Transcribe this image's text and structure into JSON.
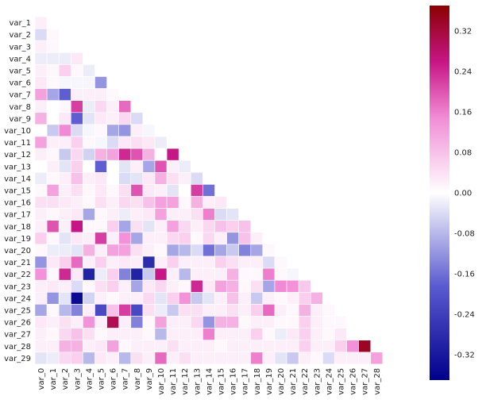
{
  "chart_data": {
    "type": "heatmap",
    "title": "",
    "xlabel": "",
    "ylabel": "",
    "mask": "lower-triangle-including-diagonal",
    "rows": [
      "var_1",
      "var_2",
      "var_3",
      "var_4",
      "var_5",
      "var_6",
      "var_7",
      "var_8",
      "var_9",
      "var_10",
      "var_11",
      "var_12",
      "var_13",
      "var_14",
      "var_15",
      "var_16",
      "var_17",
      "var_18",
      "var_19",
      "var_20",
      "var_21",
      "var_22",
      "var_23",
      "var_24",
      "var_25",
      "var_26",
      "var_27",
      "var_28",
      "var_29"
    ],
    "columns": [
      "var_0",
      "var_1",
      "var_2",
      "var_3",
      "var_4",
      "var_5",
      "var_6",
      "var_7",
      "var_8",
      "var_9",
      "var_10",
      "var_11",
      "var_12",
      "var_13",
      "var_14",
      "var_15",
      "var_16",
      "var_17",
      "var_18",
      "var_19",
      "var_20",
      "var_21",
      "var_22",
      "var_23",
      "var_24",
      "var_25",
      "var_26",
      "var_27",
      "var_28"
    ],
    "values": [
      [
        0.02
      ],
      [
        -0.04,
        0.01
      ],
      [
        0.02,
        0.01,
        0.0
      ],
      [
        -0.02,
        -0.02,
        -0.02,
        0.03
      ],
      [
        0.02,
        0.01,
        0.06,
        0.01,
        -0.02
      ],
      [
        0.03,
        0.01,
        -0.01,
        -0.01,
        -0.01,
        -0.12
      ],
      [
        0.12,
        -0.1,
        -0.18,
        0.02,
        0.02,
        0.02,
        0.01
      ],
      [
        0.02,
        0.0,
        0.01,
        0.22,
        -0.02,
        0.05,
        0.02,
        0.18
      ],
      [
        0.1,
        0.0,
        0.03,
        -0.18,
        -0.03,
        0.03,
        0.02,
        0.05,
        -0.04
      ],
      [
        0.0,
        -0.06,
        0.15,
        -0.04,
        -0.01,
        0.01,
        -0.1,
        -0.12,
        0.02,
        -0.01
      ],
      [
        0.12,
        0.02,
        0.02,
        0.06,
        0.01,
        -0.01,
        -0.04,
        0.03,
        0.04,
        0.03,
        -0.02
      ],
      [
        0.02,
        0.01,
        -0.06,
        0.05,
        -0.05,
        0.1,
        0.12,
        0.24,
        0.2,
        0.1,
        0.0,
        0.26
      ],
      [
        0.0,
        0.02,
        -0.03,
        0.06,
        0.0,
        -0.18,
        0.0,
        -0.03,
        0.02,
        -0.1,
        0.2,
        0.02,
        -0.02
      ],
      [
        -0.02,
        0.01,
        0.02,
        0.08,
        0.02,
        0.03,
        0.0,
        -0.04,
        -0.03,
        0.03,
        0.1,
        0.04,
        0.02,
        -0.04
      ],
      [
        0.01,
        0.12,
        0.02,
        0.04,
        0.01,
        0.03,
        0.01,
        0.04,
        0.2,
        0.03,
        0.02,
        -0.03,
        0.0,
        0.22,
        -0.16
      ],
      [
        0.04,
        0.04,
        0.03,
        0.02,
        0.01,
        0.04,
        0.02,
        0.05,
        0.04,
        0.08,
        0.12,
        0.12,
        0.01,
        0.1,
        0.02,
        0.03
      ],
      [
        0.02,
        0.01,
        0.02,
        0.03,
        -0.1,
        0.01,
        0.02,
        -0.02,
        0.02,
        0.03,
        0.12,
        0.02,
        0.02,
        0.04,
        0.16,
        -0.04,
        -0.03
      ],
      [
        0.02,
        0.2,
        0.02,
        0.26,
        0.01,
        0.01,
        0.06,
        -0.1,
        0.04,
        -0.03,
        0.02,
        0.12,
        0.05,
        0.02,
        0.05,
        0.08,
        0.06,
        0.08
      ],
      [
        0.06,
        0.01,
        -0.03,
        0.03,
        0.02,
        0.22,
        0.02,
        0.14,
        -0.1,
        0.02,
        0.02,
        0.05,
        0.06,
        0.01,
        0.05,
        0.02,
        -0.12,
        0.08,
        0.02
      ],
      [
        0.01,
        -0.02,
        -0.02,
        -0.03,
        0.1,
        0.02,
        0.12,
        0.12,
        0.04,
        0.02,
        0.01,
        -0.1,
        -0.08,
        -0.04,
        -0.16,
        -0.1,
        -0.06,
        -0.14,
        -0.1,
        0.01
      ],
      [
        -0.12,
        0.03,
        0.06,
        0.18,
        0.02,
        0.06,
        0.02,
        0.03,
        0.02,
        -0.28,
        0.02,
        0.06,
        0.02,
        0.02,
        0.02,
        0.06,
        0.04,
        0.02,
        0.02,
        -0.04,
        0.01
      ],
      [
        0.14,
        0.01,
        0.24,
        0.03,
        -0.3,
        -0.02,
        0.06,
        -0.14,
        -0.3,
        -0.06,
        0.26,
        0.02,
        -0.08,
        0.02,
        0.02,
        0.02,
        0.1,
        0.01,
        0.01,
        0.16,
        0.01,
        -0.01
      ],
      [
        0.02,
        0.03,
        0.02,
        -0.04,
        0.01,
        0.04,
        0.06,
        0.02,
        -0.1,
        0.03,
        0.05,
        0.02,
        0.01,
        0.24,
        0.03,
        0.12,
        0.1,
        0.01,
        0.04,
        -0.1,
        0.15,
        0.14,
        0.07
      ],
      [
        0.02,
        -0.12,
        -0.03,
        -0.35,
        -0.05,
        0.02,
        0.01,
        0.02,
        0.02,
        0.05,
        -0.03,
        0.06,
        0.14,
        -0.06,
        -0.03,
        0.02,
        0.08,
        0.02,
        -0.06,
        0.02,
        0.01,
        0.02,
        0.06,
        0.1
      ],
      [
        -0.1,
        0.01,
        -0.08,
        -0.14,
        0.02,
        -0.22,
        0.08,
        0.22,
        -0.22,
        0.04,
        -0.02,
        -0.06,
        0.04,
        0.04,
        0.02,
        0.02,
        0.04,
        0.02,
        0.06,
        0.18,
        0.02,
        0.01,
        0.1,
        0.02,
        0.01
      ],
      [
        0.03,
        0.02,
        0.04,
        0.02,
        0.14,
        0.02,
        0.3,
        0.02,
        -0.14,
        0.01,
        0.12,
        0.02,
        0.02,
        0.05,
        -0.12,
        0.1,
        0.1,
        0.01,
        0.02,
        0.02,
        0.01,
        0.01,
        0.06,
        0.02,
        0.01,
        0.01
      ],
      [
        0.02,
        0.01,
        0.05,
        0.08,
        0.04,
        0.01,
        0.02,
        0.02,
        0.02,
        0.01,
        -0.08,
        0.02,
        0.02,
        0.02,
        0.16,
        0.02,
        0.02,
        0.02,
        0.06,
        0.01,
        -0.02,
        0.03,
        0.06,
        0.02,
        0.01,
        0.03,
        0.0
      ],
      [
        0.02,
        0.02,
        0.1,
        0.1,
        0.02,
        0.03,
        0.12,
        0.01,
        0.02,
        0.02,
        0.02,
        0.04,
        0.02,
        0.02,
        0.02,
        0.01,
        0.02,
        0.02,
        0.02,
        0.02,
        0.02,
        0.02,
        0.06,
        0.02,
        0.02,
        0.06,
        0.14,
        0.34
      ],
      [
        -0.03,
        -0.02,
        0.05,
        0.06,
        -0.08,
        0.03,
        0.02,
        -0.08,
        0.04,
        0.02,
        0.18,
        0.02,
        0.04,
        0.02,
        0.02,
        0.02,
        0.02,
        0.02,
        0.16,
        0.02,
        -0.03,
        -0.06,
        0.02,
        0.01,
        -0.04,
        0.02,
        0.02,
        0.02,
        0.12
      ]
    ],
    "colorbar": {
      "min": -0.37,
      "max": 0.37,
      "ticks": [
        "0.32",
        "0.24",
        "0.16",
        "0.08",
        "0.00",
        "-0.08",
        "-0.16",
        "-0.24",
        "-0.32"
      ],
      "tick_values": [
        0.32,
        0.24,
        0.16,
        0.08,
        0.0,
        -0.08,
        -0.16,
        -0.24,
        -0.32
      ]
    },
    "colormap_stops": [
      "#00008b",
      "#5a5ad0",
      "#ffffff",
      "#f28cd6",
      "#c71585",
      "#8b0000"
    ]
  }
}
